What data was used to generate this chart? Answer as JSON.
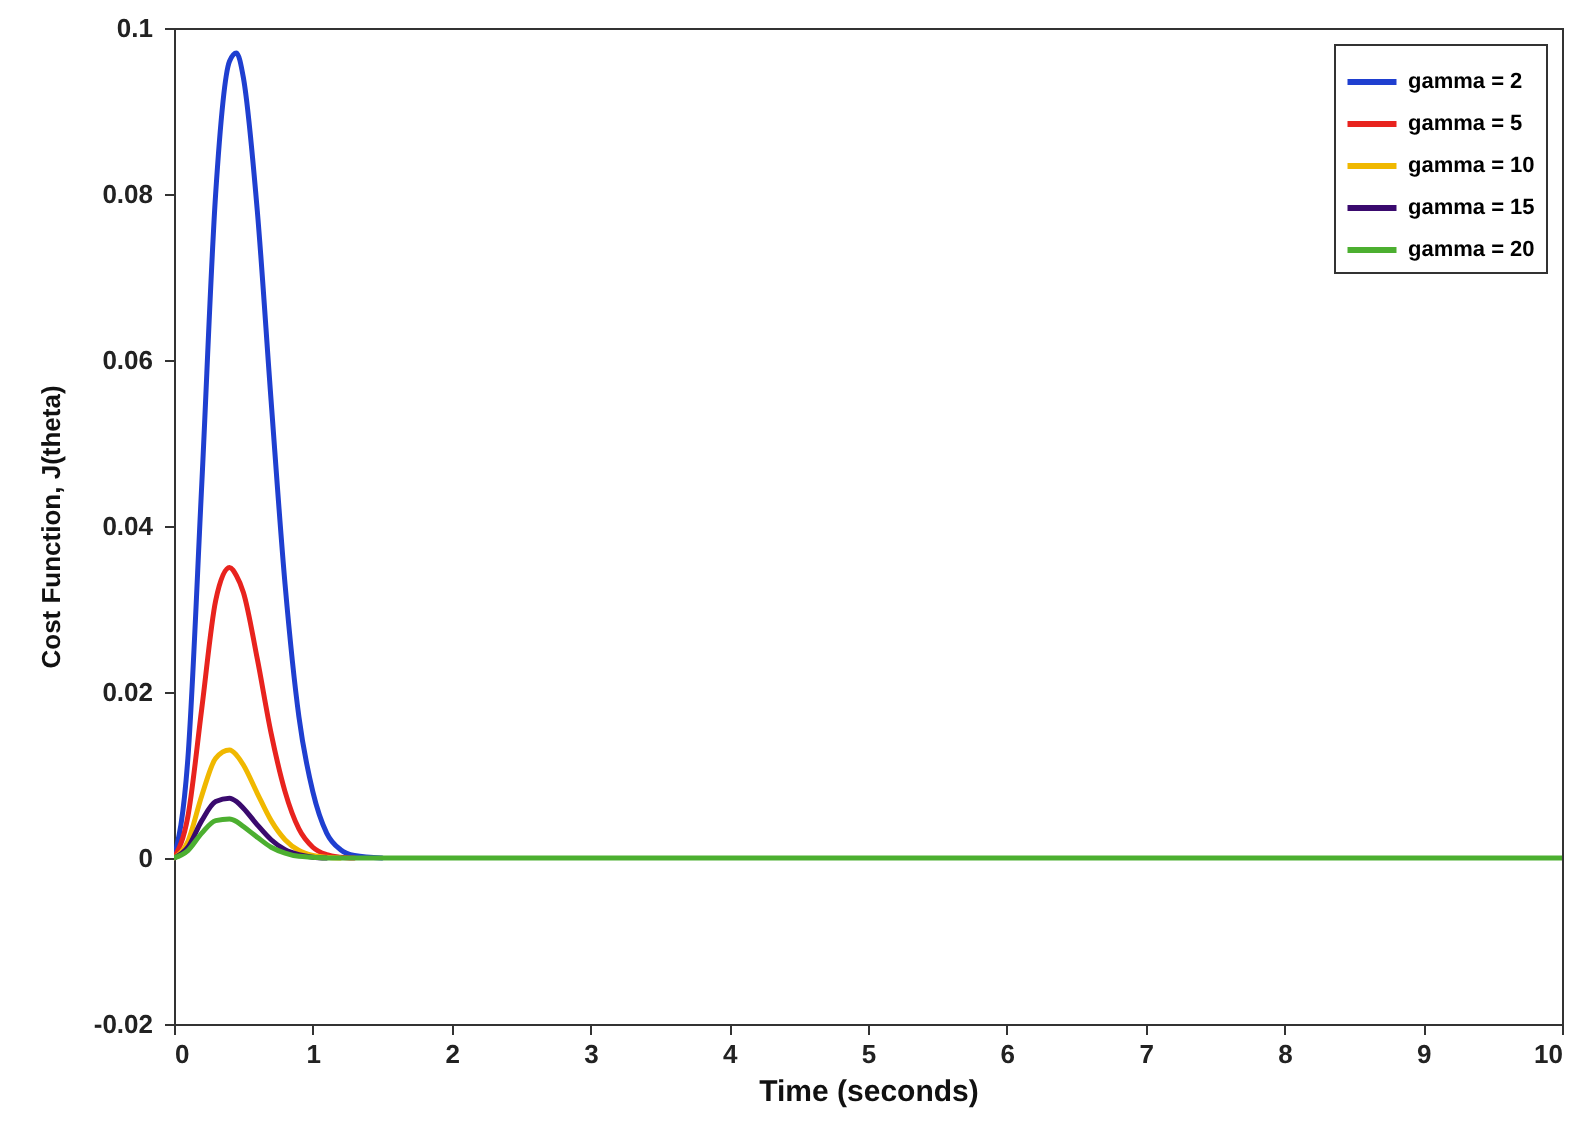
{
  "chart_data": {
    "type": "line",
    "xlabel": "Time (seconds)",
    "ylabel": "Cost Function, J(theta)",
    "x": [
      0,
      0.1,
      0.2,
      0.3,
      0.4,
      0.45,
      0.5,
      0.6,
      0.7,
      0.8,
      0.9,
      1.0,
      1.1,
      1.2,
      1.3,
      1.5,
      10
    ],
    "series": [
      {
        "name": "gamma = 2",
        "color": "#1f3fd0",
        "values": [
          0,
          0.012,
          0.045,
          0.08,
          0.096,
          0.097,
          0.094,
          0.078,
          0.055,
          0.033,
          0.017,
          0.008,
          0.003,
          0.001,
          0.0003,
          0,
          null
        ]
      },
      {
        "name": "gamma = 5",
        "color": "#e8231e",
        "values": [
          0,
          0.005,
          0.018,
          0.031,
          0.035,
          0.034,
          0.032,
          0.024,
          0.015,
          0.008,
          0.0035,
          0.0013,
          0.0004,
          0.0001,
          0,
          null,
          null
        ]
      },
      {
        "name": "gamma = 10",
        "color": "#f0b800",
        "values": [
          0,
          0.002,
          0.0075,
          0.012,
          0.013,
          0.0124,
          0.0112,
          0.0078,
          0.0045,
          0.0022,
          0.0009,
          0.0003,
          0.0001,
          0,
          null,
          null,
          null
        ]
      },
      {
        "name": "gamma = 15",
        "color": "#3a0a6e",
        "values": [
          0,
          0.0013,
          0.0045,
          0.0068,
          0.0072,
          0.0068,
          0.006,
          0.004,
          0.0022,
          0.001,
          0.0004,
          0.0001,
          0,
          null,
          null,
          null,
          null
        ]
      },
      {
        "name": "gamma = 20",
        "color": "#4caf30",
        "values": [
          0,
          0.0009,
          0.003,
          0.0045,
          0.0047,
          0.0044,
          0.0038,
          0.0025,
          0.0013,
          0.0006,
          0.0002,
          0.0001,
          0,
          0,
          0,
          0,
          0
        ]
      }
    ],
    "xlim": [
      0,
      10
    ],
    "xticks": [
      0,
      1,
      2,
      3,
      4,
      5,
      6,
      7,
      8,
      9,
      10
    ],
    "ylim": [
      -0.02,
      0.1
    ],
    "yticks": [
      -0.02,
      0,
      0.02,
      0.04,
      0.06,
      0.08,
      0.1
    ],
    "grid": false,
    "legend": "top right",
    "line_style": "solid"
  }
}
